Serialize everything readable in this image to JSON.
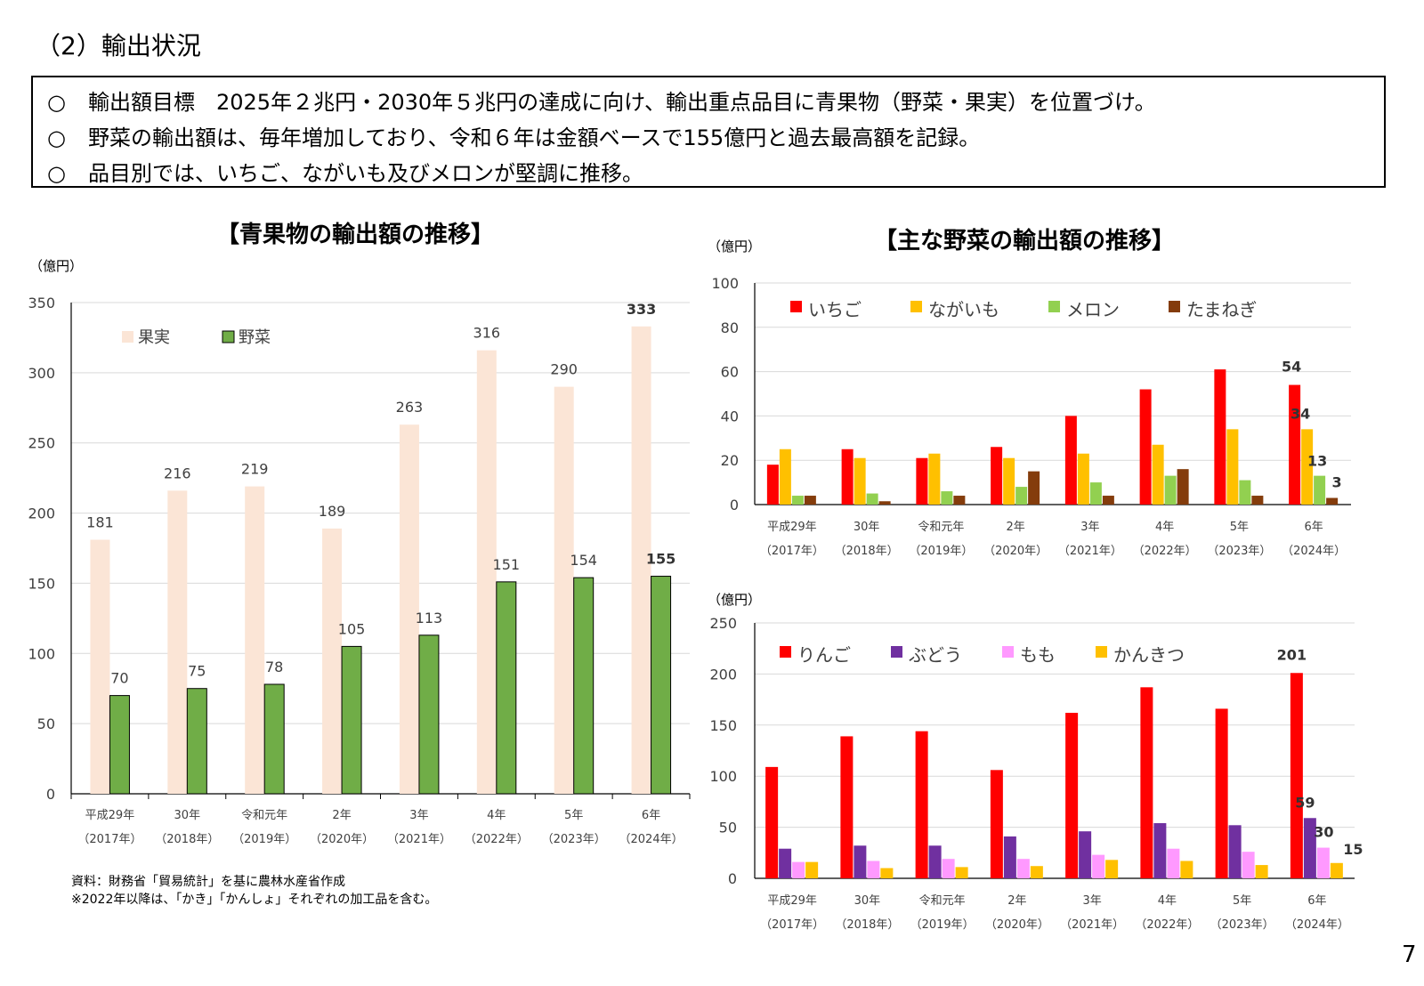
{
  "heading": "（2）輸出状況",
  "summary": [
    {
      "mark": "○",
      "text": "輸出額目標　2025年２兆円・2030年５兆円の達成に向け、輸出重点品目に青果物（野菜・果実）を位置づけ。"
    },
    {
      "mark": "○",
      "text": "野菜の輸出額は、毎年増加しており、令和６年は金額ベースで155億円と過去最高額を記録。"
    },
    {
      "mark": "○",
      "text": "品目別では、いちご、ながいも及びメロンが堅調に推移。"
    }
  ],
  "footnotes": [
    "資料：財務省「貿易統計」を基に農林水産省作成",
    "※2022年以降は、「かき」「かんしょ」それぞれの加工品を含む。"
  ],
  "page_number": "7",
  "chart_data": [
    {
      "type": "bar",
      "title": "【青果物の輸出額の推移】",
      "unit": "（億円）",
      "categories": [
        "平成29年",
        "30年",
        "令和元年",
        "2年",
        "3年",
        "4年",
        "5年",
        "6年"
      ],
      "categories_sub": [
        "（2017年）",
        "（2018年）",
        "（2019年）",
        "（2020年）",
        "（2021年）",
        "（2022年）",
        "（2023年）",
        "（2024年）"
      ],
      "ylim": [
        0,
        350
      ],
      "yticks": [
        0,
        50,
        100,
        150,
        200,
        250,
        300,
        350
      ],
      "legend_position": "top-left",
      "grid": true,
      "series": [
        {
          "name": "果実",
          "color": "#FBE5D6",
          "values": [
            181,
            216,
            219,
            189,
            263,
            316,
            290,
            333
          ]
        },
        {
          "name": "野菜",
          "color": "#70AD47",
          "values": [
            70,
            75,
            78,
            105,
            113,
            151,
            154,
            155
          ]
        }
      ]
    },
    {
      "type": "bar",
      "title": "【主な野菜の輸出額の推移】",
      "unit": "（億円）",
      "categories": [
        "平成29年",
        "30年",
        "令和元年",
        "2年",
        "3年",
        "4年",
        "5年",
        "6年"
      ],
      "categories_sub": [
        "（2017年）",
        "（2018年）",
        "（2019年）",
        "（2020年）",
        "（2021年）",
        "（2022年）",
        "（2023年）",
        "（2024年）"
      ],
      "ylim": [
        0,
        100
      ],
      "yticks": [
        0,
        20,
        40,
        60,
        80,
        100
      ],
      "legend_position": "top",
      "grid": true,
      "series": [
        {
          "name": "いちご",
          "color": "#FF0000",
          "values": [
            18,
            25,
            21,
            26,
            40,
            52,
            61,
            54
          ]
        },
        {
          "name": "ながいも",
          "color": "#FFC000",
          "values": [
            25,
            21,
            23,
            21,
            23,
            27,
            34,
            34
          ]
        },
        {
          "name": "メロン",
          "color": "#92D050",
          "values": [
            4,
            5,
            6,
            8,
            10,
            13,
            11,
            13
          ]
        },
        {
          "name": "たまねぎ",
          "color": "#843C0C",
          "values": [
            4,
            1.5,
            4,
            15,
            4,
            16,
            4,
            3
          ]
        }
      ]
    },
    {
      "type": "bar",
      "title": "",
      "unit": "（億円）",
      "categories": [
        "平成29年",
        "30年",
        "令和元年",
        "2年",
        "3年",
        "4年",
        "5年",
        "6年"
      ],
      "categories_sub": [
        "（2017年）",
        "（2018年）",
        "（2019年）",
        "（2020年）",
        "（2021年）",
        "（2022年）",
        "（2023年）",
        "（2024年）"
      ],
      "ylim": [
        0,
        250
      ],
      "yticks": [
        0,
        50,
        100,
        150,
        200,
        250
      ],
      "legend_position": "top",
      "grid": true,
      "series": [
        {
          "name": "りんご",
          "color": "#FF0000",
          "values": [
            109,
            139,
            144,
            106,
            162,
            187,
            166,
            201
          ]
        },
        {
          "name": "ぶどう",
          "color": "#7030A0",
          "values": [
            29,
            32,
            32,
            41,
            46,
            54,
            52,
            59
          ]
        },
        {
          "name": "もも",
          "color": "#FF99FF",
          "values": [
            16,
            17,
            19,
            19,
            23,
            29,
            26,
            30
          ]
        },
        {
          "name": "かんきつ",
          "color": "#FFC000",
          "values": [
            16,
            10,
            11,
            12,
            18,
            17,
            13,
            15
          ]
        }
      ]
    }
  ]
}
